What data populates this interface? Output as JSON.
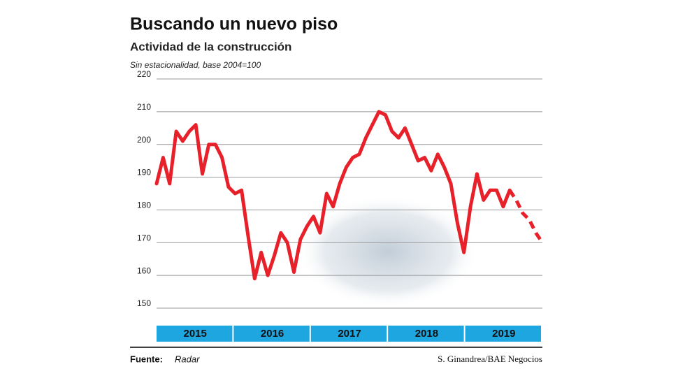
{
  "chart_data": {
    "type": "line",
    "title": "Buscando un nuevo piso",
    "subtitle": "Actividad de la construcción",
    "note": "Sin estacionalidad, base 2004=100",
    "source_label": "Fuente:",
    "source": "Radar",
    "credit": "S. Ginandrea/BAE Negocios",
    "year_bands": [
      "2015",
      "2016",
      "2017",
      "2018",
      "2019"
    ],
    "band_color": "#1ea6e0",
    "ylim": [
      150,
      220
    ],
    "yticks": [
      150,
      160,
      170,
      180,
      190,
      200,
      210,
      220
    ],
    "grid": true,
    "series": [
      {
        "color": "#e8202a",
        "dashed": false,
        "values": [
          188,
          196,
          188,
          204,
          201,
          204,
          206,
          191,
          200,
          200,
          196,
          187,
          185,
          186,
          172,
          159,
          167,
          160,
          166,
          173,
          170,
          161,
          171,
          175,
          178,
          173,
          185,
          181,
          188,
          193,
          196,
          197,
          202,
          206,
          210,
          209,
          204,
          202,
          205,
          200,
          195,
          196,
          192,
          197,
          193,
          188,
          176,
          167,
          181,
          191,
          183,
          186,
          186,
          181,
          186,
          null,
          null,
          null,
          null,
          null
        ]
      },
      {
        "color": "#e8202a",
        "dashed": true,
        "values": [
          null,
          null,
          null,
          null,
          null,
          null,
          null,
          null,
          null,
          null,
          null,
          null,
          null,
          null,
          null,
          null,
          null,
          null,
          null,
          null,
          null,
          null,
          null,
          null,
          null,
          null,
          null,
          null,
          null,
          null,
          null,
          null,
          null,
          null,
          null,
          null,
          null,
          null,
          null,
          null,
          null,
          null,
          null,
          null,
          null,
          null,
          null,
          null,
          null,
          null,
          null,
          null,
          null,
          null,
          186,
          183,
          179,
          177,
          173,
          170
        ]
      }
    ]
  }
}
